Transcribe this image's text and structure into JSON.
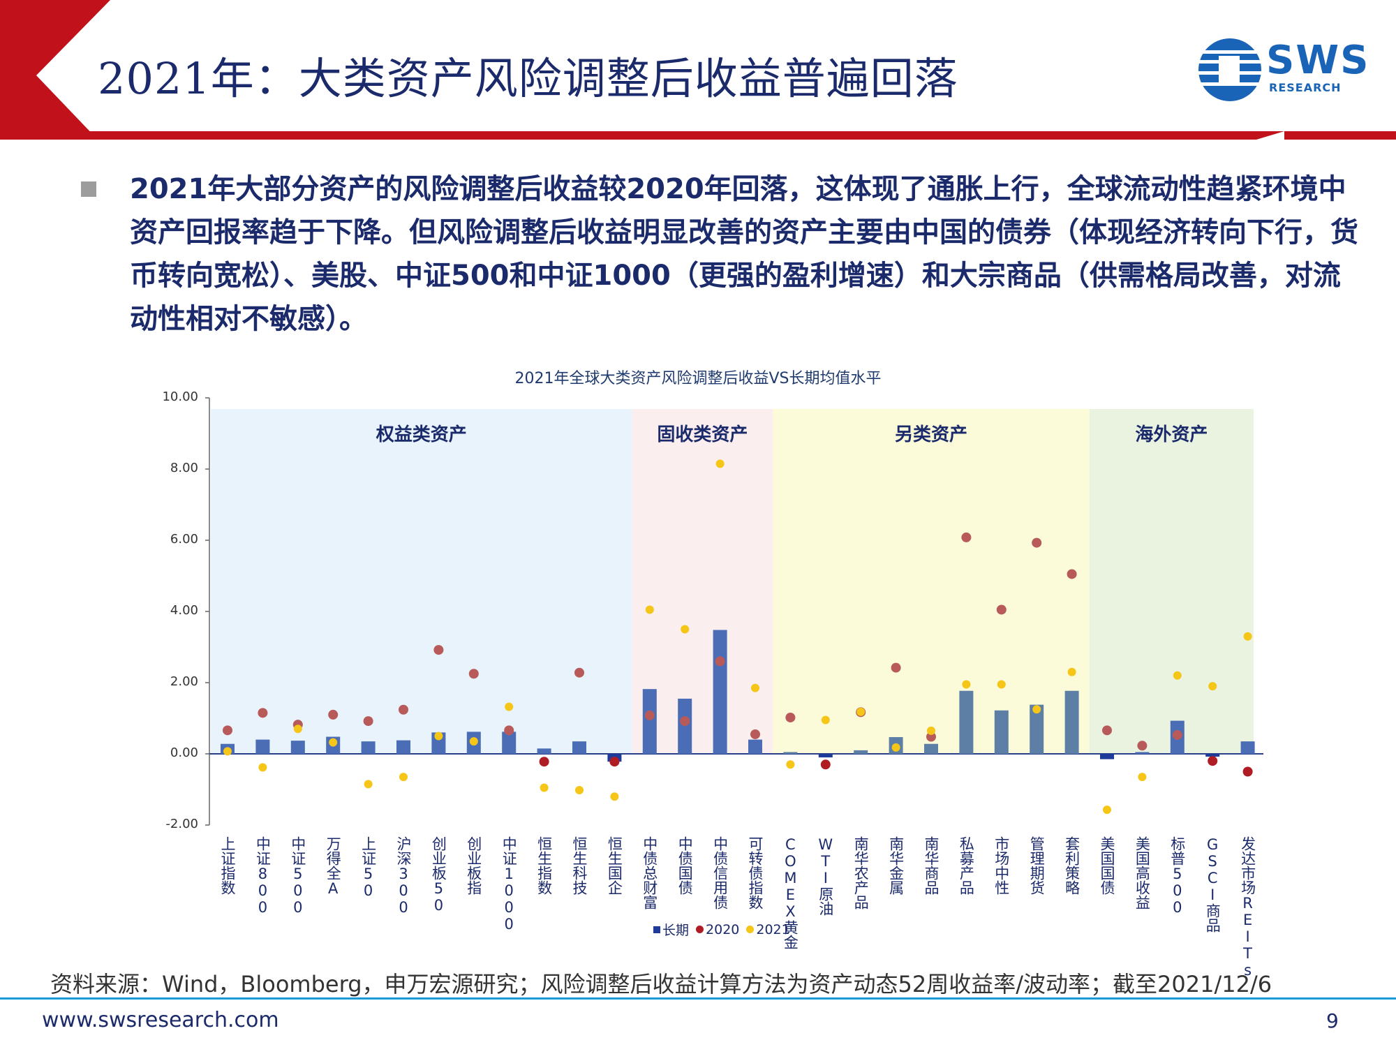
{
  "header": {
    "title": "2021年：大类资产风险调整后收益普遍回落"
  },
  "logo": {
    "text": "SWS",
    "subtext": "RESEARCH",
    "icon": "sws-globe-icon"
  },
  "bullet": {
    "icon": "square-bullet-icon",
    "text": "2021年大部分资产的风险调整后收益较2020年回落，这体现了通胀上行，全球流动性趋紧环境中资产回报率趋于下降。但风险调整后收益明显改善的资产主要由中国的债券（体现经济转向下行，货币转向宽松）、美股、中证500和中证1000（更强的盈利增速）和大宗商品（供需格局改善，对流动性相对不敏感）。"
  },
  "chart_data": {
    "type": "bar",
    "title": "2021年全球大类资产风险调整后收益VS长期均值水平",
    "ylim": [
      -2,
      10
    ],
    "yticks": [
      "10.00",
      "8.00",
      "6.00",
      "4.00",
      "2.00",
      "0.00",
      "-2.00"
    ],
    "categories": [
      "上证指数",
      "中证800",
      "中证500",
      "万得全A",
      "上证50",
      "沪深300",
      "创业板50",
      "创业板指",
      "中证1000",
      "恒生指数",
      "恒生科技",
      "恒生国企",
      "中债总财富",
      "中债国债",
      "中债信用债",
      "可转债指数",
      "COMEX黄金",
      "WTI原油",
      "南华农产品",
      "南华金属",
      "南华商品",
      "私募产品",
      "市场中性",
      "管理期货",
      "套利策略",
      "美国国债",
      "美国高收益",
      "标普500",
      "GSCI商品",
      "发达市场REITs"
    ],
    "regions": [
      {
        "label": "权益类资产",
        "start": 0,
        "end": 11,
        "color": "#e9f3fb"
      },
      {
        "label": "固收类资产",
        "start": 12,
        "end": 15,
        "color": "#fbeeee"
      },
      {
        "label": "另类资产",
        "start": 16,
        "end": 24,
        "color": "#fbfbd9"
      },
      {
        "label": "海外资产",
        "start": 25,
        "end": 29,
        "color": "#eaf3e0"
      }
    ],
    "series": [
      {
        "name": "长期",
        "kind": "bar",
        "color": "#4a6db5",
        "alt_color": "#5d7fa6",
        "values": [
          0.28,
          0.4,
          0.37,
          0.48,
          0.35,
          0.38,
          0.6,
          0.62,
          0.62,
          0.15,
          0.35,
          -0.22,
          1.82,
          1.55,
          3.48,
          0.4,
          0.05,
          -0.1,
          0.1,
          0.47,
          0.28,
          1.77,
          1.22,
          1.38,
          1.77,
          -0.15,
          0.05,
          0.93,
          -0.08,
          0.35
        ]
      },
      {
        "name": "2020",
        "kind": "dot",
        "color": "#b85a5a",
        "neg_color": "#b01c24",
        "values": [
          0.66,
          1.15,
          0.82,
          1.1,
          0.92,
          1.24,
          2.92,
          2.25,
          0.66,
          -0.22,
          2.28,
          -0.22,
          1.08,
          0.92,
          2.6,
          0.55,
          1.02,
          -0.3,
          1.17,
          2.42,
          0.48,
          6.08,
          4.05,
          5.93,
          5.05,
          0.66,
          0.23,
          0.53,
          -0.2,
          -0.5
        ]
      },
      {
        "name": "2021",
        "kind": "dot",
        "color": "#f5c518",
        "values": [
          0.07,
          -0.38,
          0.7,
          0.32,
          -0.85,
          -0.65,
          0.5,
          0.35,
          1.32,
          -0.95,
          -1.02,
          -1.2,
          4.05,
          3.5,
          8.15,
          1.85,
          -0.3,
          0.95,
          1.18,
          0.18,
          0.65,
          1.95,
          1.95,
          1.25,
          2.3,
          -1.57,
          -0.65,
          2.2,
          1.9,
          3.3
        ]
      }
    ]
  },
  "footer": {
    "source": "资料来源：Wind，Bloomberg，申万宏源研究；风险调整后收益计算方法为资产动态52周收益率/波动率；截至2021/12/6",
    "url": "www.swsresearch.com",
    "page": "9"
  }
}
